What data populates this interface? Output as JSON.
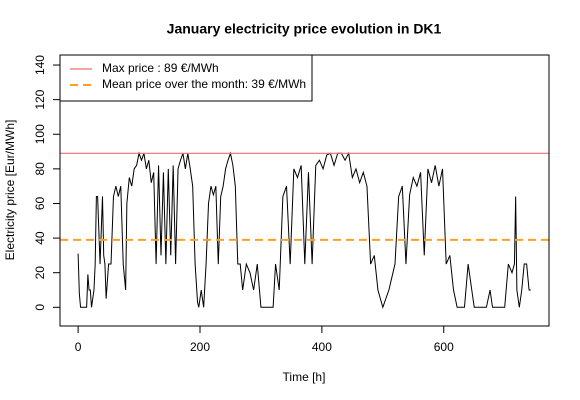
{
  "chart_data": {
    "type": "line",
    "title": "January electricity price evolution in DK1",
    "x_label": "Time [h]",
    "y_label": "Electricity price [Eur/MWh]",
    "color": "#000000",
    "x": [
      0,
      2,
      4,
      10,
      12,
      14,
      16,
      18,
      20,
      22,
      26,
      28,
      30,
      32,
      36,
      40,
      42,
      44,
      46,
      50,
      54,
      58,
      62,
      66,
      70,
      74,
      78,
      80,
      84,
      88,
      92,
      96,
      100,
      104,
      108,
      112,
      116,
      120,
      124,
      128,
      132,
      136,
      140,
      144,
      148,
      152,
      156,
      160,
      164,
      168,
      172,
      176,
      180,
      184,
      188,
      192,
      196,
      198,
      202,
      206,
      210,
      214,
      218,
      222,
      226,
      230,
      234,
      238,
      242,
      246,
      250,
      254,
      258,
      262,
      266,
      270,
      276,
      282,
      288,
      294,
      300,
      310,
      320,
      324,
      330,
      336,
      342,
      348,
      354,
      360,
      366,
      372,
      378,
      384,
      390,
      396,
      402,
      408,
      414,
      420,
      426,
      432,
      438,
      444,
      450,
      456,
      462,
      468,
      474,
      480,
      486,
      492,
      500,
      510,
      520,
      526,
      532,
      538,
      544,
      550,
      556,
      562,
      568,
      574,
      580,
      586,
      592,
      598,
      604,
      610,
      616,
      622,
      628,
      634,
      640,
      650,
      660,
      670,
      676,
      680,
      690,
      700,
      706,
      712,
      716,
      718,
      720,
      724,
      728,
      732,
      736,
      740,
      743
    ],
    "values": [
      31,
      8,
      0,
      0,
      0,
      0,
      19,
      10,
      10,
      0,
      10,
      25,
      64,
      64,
      25,
      64,
      30,
      25,
      5,
      25,
      25,
      64,
      70,
      64,
      70,
      25,
      10,
      60,
      75,
      70,
      80,
      82,
      89,
      85,
      89,
      80,
      85,
      72,
      78,
      25,
      82,
      30,
      78,
      25,
      80,
      30,
      82,
      25,
      80,
      85,
      89,
      80,
      89,
      80,
      70,
      25,
      3,
      0,
      10,
      0,
      25,
      60,
      70,
      65,
      70,
      25,
      64,
      70,
      80,
      85,
      89,
      82,
      70,
      25,
      25,
      10,
      25,
      20,
      10,
      25,
      0,
      0,
      0,
      25,
      10,
      64,
      70,
      25,
      80,
      75,
      82,
      25,
      78,
      25,
      82,
      85,
      80,
      88,
      89,
      82,
      89,
      89,
      85,
      89,
      75,
      80,
      72,
      78,
      70,
      25,
      30,
      10,
      0,
      10,
      25,
      64,
      70,
      25,
      65,
      75,
      70,
      78,
      30,
      80,
      72,
      82,
      70,
      80,
      25,
      30,
      10,
      0,
      0,
      0,
      25,
      0,
      0,
      0,
      10,
      0,
      0,
      0,
      25,
      20,
      25,
      64,
      10,
      0,
      10,
      25,
      25,
      10,
      10
    ],
    "reference_lines": [
      {
        "name": "Max price : 89 €/MWh",
        "value": 89,
        "color": "#f26d6d",
        "dashed": false
      },
      {
        "name": "Mean price over the month: 39 €/MWh",
        "value": 39,
        "color": "#ffa020",
        "dashed": true
      }
    ],
    "legend": "top-left",
    "xlim": [
      -29.72,
      772.72
    ],
    "ylim": [
      -10.8,
      145.8
    ],
    "xticks": [
      0,
      200,
      400,
      600
    ],
    "yticks": [
      0,
      20,
      40,
      60,
      80,
      100,
      120,
      140
    ]
  }
}
